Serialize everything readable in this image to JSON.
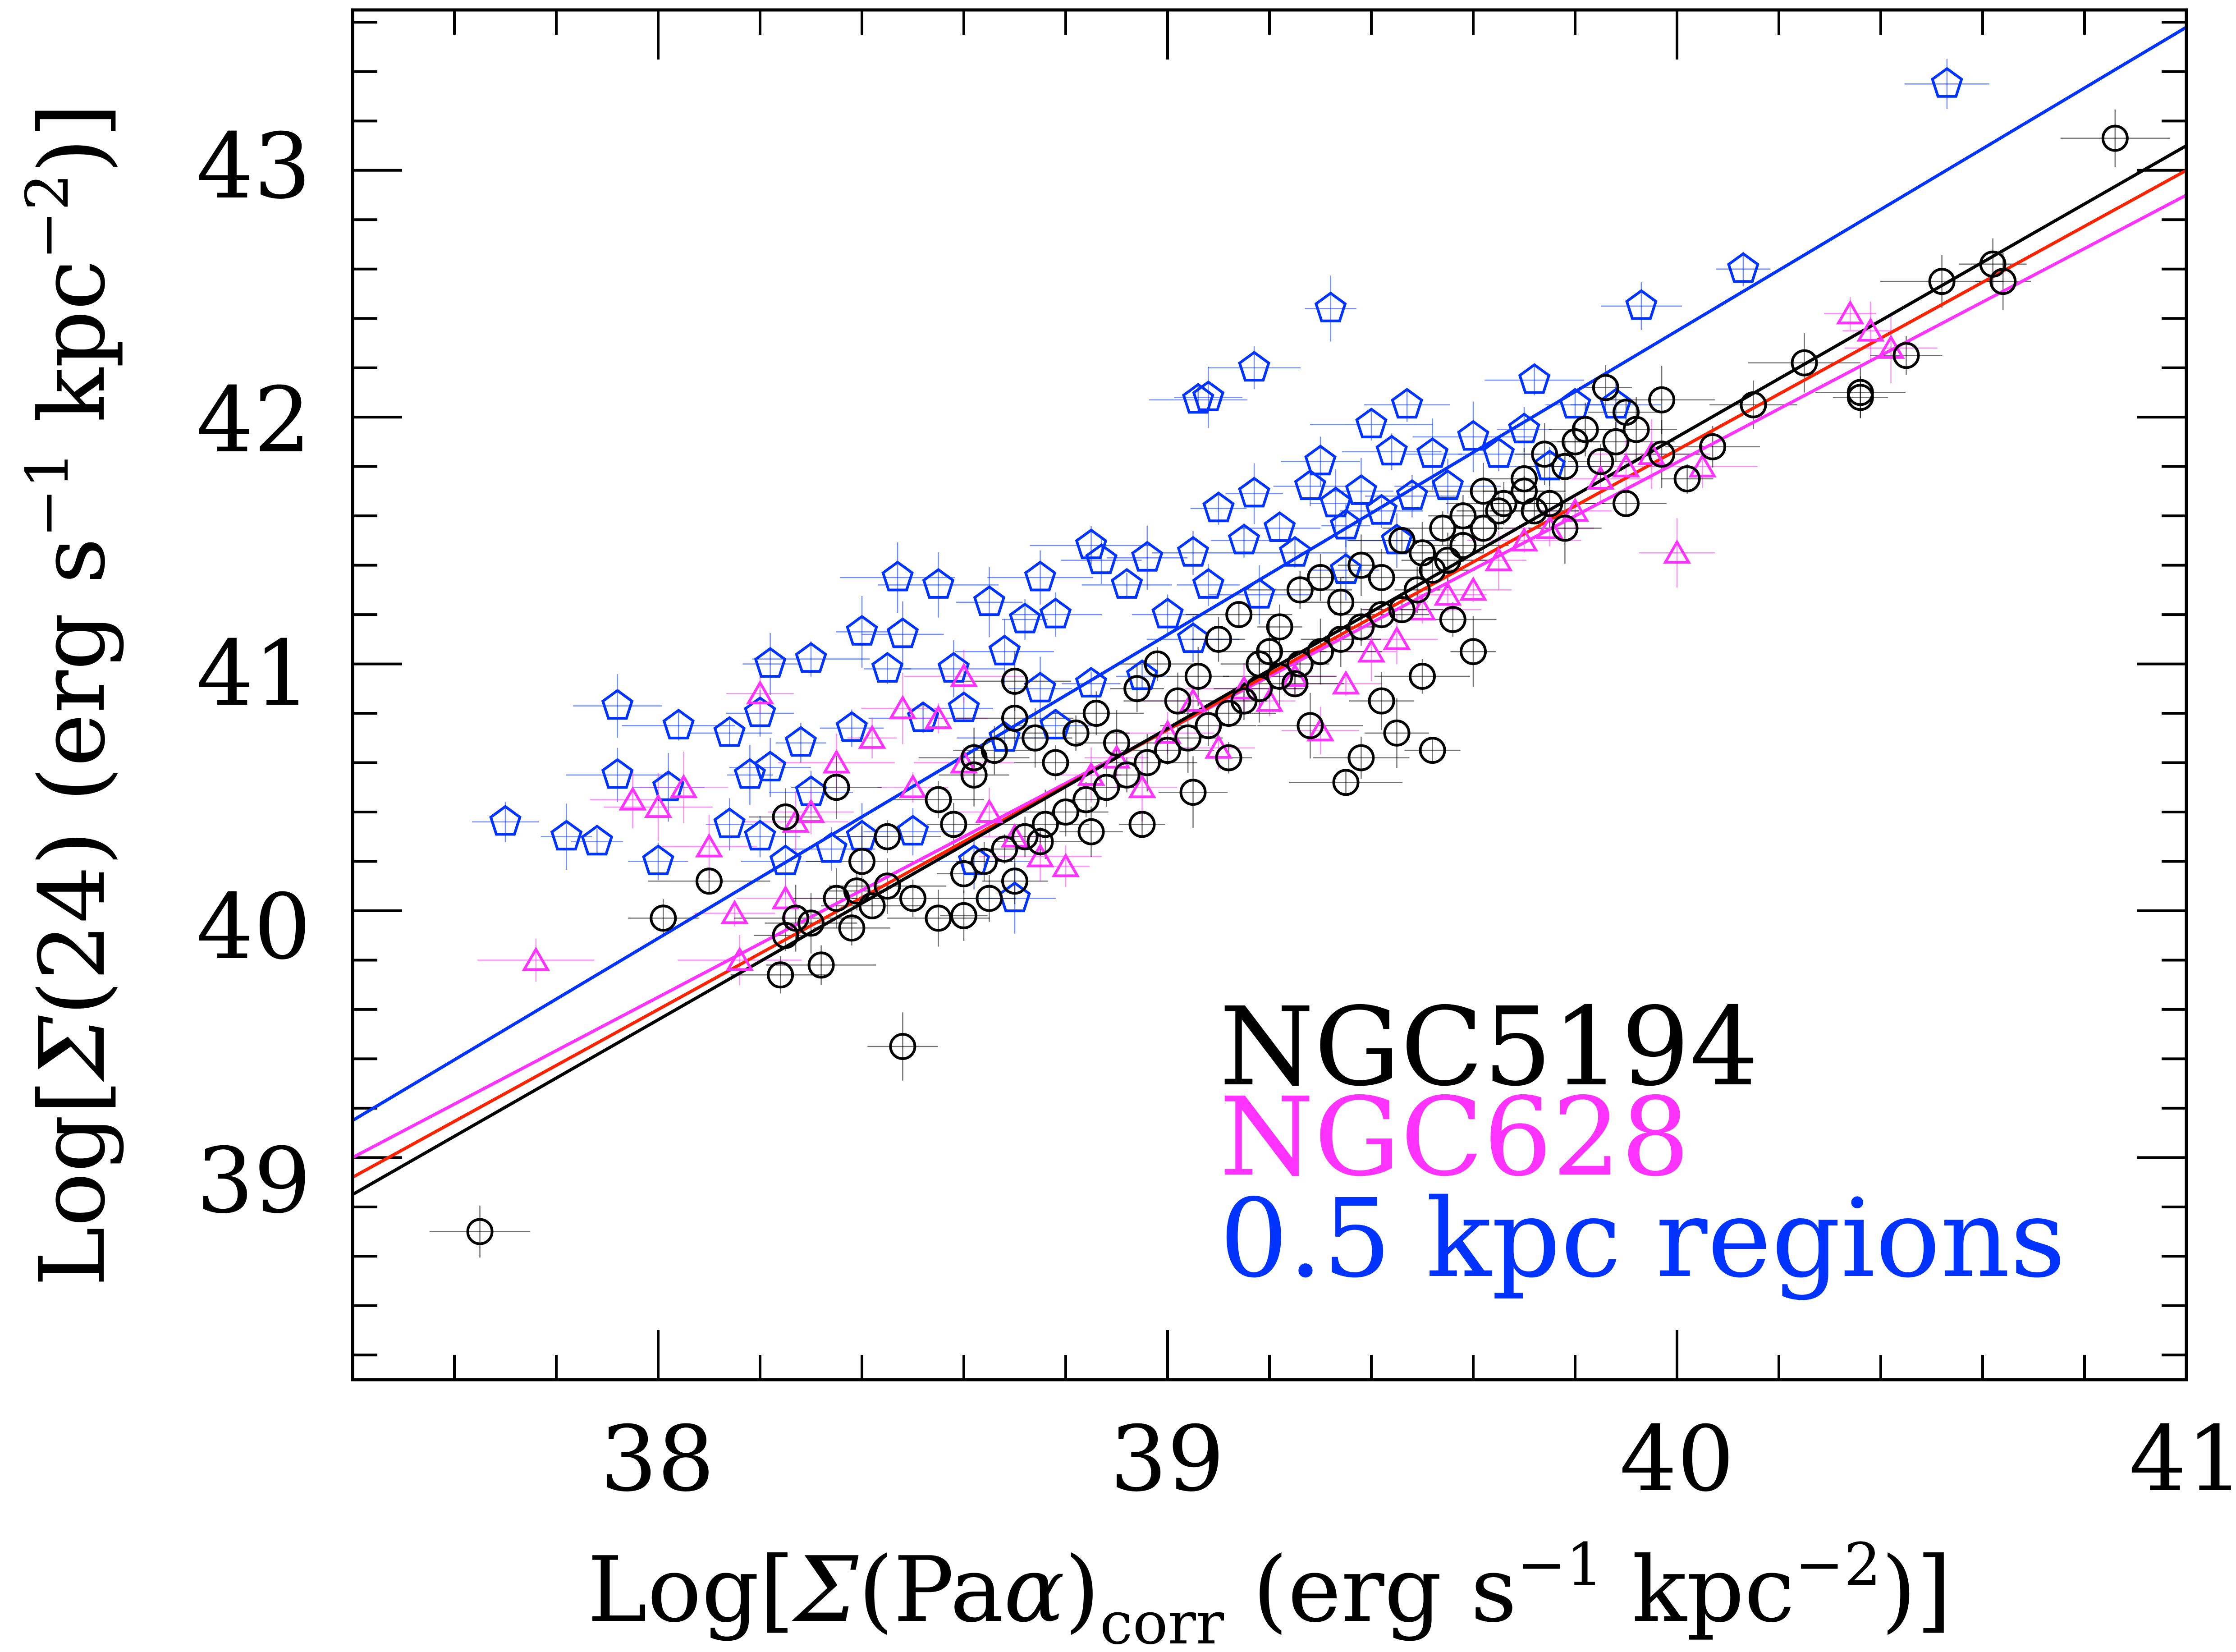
{
  "colors": {
    "ngc5194": "#000000",
    "ngc628": "#ff33ff",
    "regions": "#0033ff",
    "fit_red": "#ff2200"
  },
  "chart_data": {
    "type": "scatter",
    "xlim": [
      37.4,
      41.0
    ],
    "ylim": [
      38.1,
      43.65
    ],
    "x_ticks": [
      "38",
      "39",
      "40",
      "41"
    ],
    "y_ticks": [
      "39",
      "40",
      "41",
      "42",
      "43"
    ],
    "xlabel": {
      "pre": "Log[",
      "sigma": "Σ",
      "paren": "(Pa",
      "alpha": "α",
      "close": ")",
      "sub": "corr",
      "units": " (erg s",
      "exp1": "−1",
      "mid": " kpc",
      "exp2": "−2",
      "end": ")]"
    },
    "ylabel": {
      "pre": "Log[",
      "sigma": "Σ",
      "main": "(24) (erg s",
      "exp1": "−1",
      "mid": " kpc",
      "exp2": "−2",
      "end": ")]"
    },
    "grid": false,
    "legend_position": "bottom-right",
    "legend": [
      "NGC5194",
      "NGC628",
      "0.5 kpc regions"
    ],
    "fit_lines": [
      {
        "color": "blue",
        "x": [
          37.4,
          41.0
        ],
        "y": [
          39.15,
          43.58
        ]
      },
      {
        "color": "magenta",
        "x": [
          37.4,
          41.0
        ],
        "y": [
          39.0,
          42.9
        ]
      },
      {
        "color": "red",
        "x": [
          37.4,
          41.0
        ],
        "y": [
          38.92,
          43.0
        ]
      },
      {
        "color": "black",
        "x": [
          37.4,
          41.0
        ],
        "y": [
          38.85,
          43.1
        ]
      }
    ],
    "series": [
      {
        "name": "0.5 kpc regions",
        "marker": "pentagon",
        "points": [
          [
            40.53,
            43.35
          ],
          [
            40.13,
            42.6
          ],
          [
            39.93,
            42.45
          ],
          [
            39.32,
            42.44
          ],
          [
            39.17,
            42.2
          ],
          [
            39.08,
            42.08
          ],
          [
            39.06,
            42.07
          ],
          [
            39.47,
            42.05
          ],
          [
            39.72,
            42.15
          ],
          [
            39.88,
            42.05
          ],
          [
            39.8,
            42.05
          ],
          [
            39.6,
            41.92
          ],
          [
            39.7,
            41.95
          ],
          [
            39.4,
            41.97
          ],
          [
            39.3,
            41.82
          ],
          [
            39.44,
            41.86
          ],
          [
            39.52,
            41.85
          ],
          [
            39.65,
            41.85
          ],
          [
            39.75,
            41.8
          ],
          [
            39.17,
            41.69
          ],
          [
            39.28,
            41.72
          ],
          [
            39.33,
            41.65
          ],
          [
            39.38,
            41.7
          ],
          [
            39.42,
            41.62
          ],
          [
            39.48,
            41.68
          ],
          [
            39.55,
            41.72
          ],
          [
            39.1,
            41.63
          ],
          [
            39.22,
            41.55
          ],
          [
            39.35,
            41.56
          ],
          [
            39.45,
            41.5
          ],
          [
            38.85,
            41.48
          ],
          [
            38.87,
            41.42
          ],
          [
            38.96,
            41.43
          ],
          [
            39.05,
            41.45
          ],
          [
            39.15,
            41.5
          ],
          [
            39.25,
            41.45
          ],
          [
            39.35,
            41.38
          ],
          [
            38.47,
            41.35
          ],
          [
            38.55,
            41.32
          ],
          [
            38.75,
            41.35
          ],
          [
            38.92,
            41.32
          ],
          [
            39.0,
            41.2
          ],
          [
            39.08,
            41.32
          ],
          [
            39.18,
            41.28
          ],
          [
            38.65,
            41.25
          ],
          [
            38.72,
            41.18
          ],
          [
            38.78,
            41.2
          ],
          [
            38.4,
            41.13
          ],
          [
            38.48,
            41.12
          ],
          [
            39.05,
            41.1
          ],
          [
            38.22,
            41.0
          ],
          [
            38.3,
            41.02
          ],
          [
            38.45,
            40.98
          ],
          [
            38.58,
            40.98
          ],
          [
            38.68,
            41.05
          ],
          [
            38.75,
            40.9
          ],
          [
            38.85,
            40.92
          ],
          [
            38.95,
            40.95
          ],
          [
            37.92,
            40.83
          ],
          [
            38.04,
            40.75
          ],
          [
            38.14,
            40.72
          ],
          [
            38.2,
            40.8
          ],
          [
            38.28,
            40.68
          ],
          [
            38.38,
            40.74
          ],
          [
            38.52,
            40.78
          ],
          [
            38.6,
            40.82
          ],
          [
            38.68,
            40.7
          ],
          [
            38.78,
            40.75
          ],
          [
            38.3,
            40.48
          ],
          [
            38.18,
            40.55
          ],
          [
            38.22,
            40.58
          ],
          [
            38.02,
            40.5
          ],
          [
            37.92,
            40.55
          ],
          [
            37.7,
            40.36
          ],
          [
            37.82,
            40.3
          ],
          [
            37.88,
            40.28
          ],
          [
            38.0,
            40.2
          ],
          [
            38.14,
            40.35
          ],
          [
            38.2,
            40.3
          ],
          [
            38.25,
            40.2
          ],
          [
            38.34,
            40.25
          ],
          [
            38.4,
            40.3
          ],
          [
            38.5,
            40.32
          ],
          [
            38.62,
            40.2
          ],
          [
            38.7,
            40.05
          ]
        ]
      },
      {
        "name": "NGC628",
        "marker": "triangle",
        "points": [
          [
            37.76,
            39.8
          ],
          [
            37.95,
            40.45
          ],
          [
            38.0,
            40.42
          ],
          [
            38.05,
            40.5
          ],
          [
            38.1,
            40.26
          ],
          [
            38.15,
            39.99
          ],
          [
            38.16,
            39.8
          ],
          [
            38.25,
            40.05
          ],
          [
            38.27,
            40.36
          ],
          [
            38.3,
            40.4
          ],
          [
            38.35,
            40.6
          ],
          [
            38.42,
            40.7
          ],
          [
            38.48,
            40.82
          ],
          [
            38.55,
            40.78
          ],
          [
            38.6,
            40.6
          ],
          [
            38.65,
            40.4
          ],
          [
            38.7,
            40.3
          ],
          [
            38.75,
            40.22
          ],
          [
            38.8,
            40.18
          ],
          [
            38.85,
            40.55
          ],
          [
            38.9,
            40.62
          ],
          [
            38.95,
            40.5
          ],
          [
            39.0,
            40.72
          ],
          [
            39.05,
            40.85
          ],
          [
            39.1,
            40.66
          ],
          [
            39.15,
            40.9
          ],
          [
            39.2,
            40.85
          ],
          [
            39.25,
            40.95
          ],
          [
            39.3,
            40.73
          ],
          [
            39.35,
            40.92
          ],
          [
            39.4,
            41.05
          ],
          [
            39.45,
            41.1
          ],
          [
            39.5,
            41.22
          ],
          [
            39.55,
            41.28
          ],
          [
            39.6,
            41.3
          ],
          [
            39.65,
            41.42
          ],
          [
            39.7,
            41.5
          ],
          [
            39.75,
            41.55
          ],
          [
            39.8,
            41.62
          ],
          [
            39.85,
            41.75
          ],
          [
            39.9,
            41.8
          ],
          [
            39.95,
            41.85
          ],
          [
            40.0,
            41.45
          ],
          [
            40.05,
            41.8
          ],
          [
            40.34,
            42.42
          ],
          [
            40.38,
            42.35
          ],
          [
            40.42,
            42.28
          ],
          [
            38.2,
            40.88
          ],
          [
            38.5,
            40.5
          ],
          [
            38.6,
            40.95
          ]
        ]
      },
      {
        "name": "NGC5194",
        "marker": "circle",
        "points": [
          [
            40.86,
            43.13
          ],
          [
            40.62,
            42.62
          ],
          [
            40.64,
            42.55
          ],
          [
            40.52,
            42.55
          ],
          [
            40.45,
            42.25
          ],
          [
            40.36,
            42.1
          ],
          [
            40.36,
            42.08
          ],
          [
            40.25,
            42.22
          ],
          [
            40.15,
            42.05
          ],
          [
            40.07,
            41.88
          ],
          [
            40.02,
            41.75
          ],
          [
            39.97,
            41.85
          ],
          [
            39.97,
            42.07
          ],
          [
            39.92,
            41.95
          ],
          [
            39.9,
            41.65
          ],
          [
            39.88,
            41.9
          ],
          [
            39.85,
            41.82
          ],
          [
            39.8,
            41.9
          ],
          [
            39.78,
            41.55
          ],
          [
            39.75,
            41.65
          ],
          [
            39.72,
            41.62
          ],
          [
            39.7,
            41.7
          ],
          [
            39.65,
            41.62
          ],
          [
            39.62,
            41.55
          ],
          [
            39.58,
            41.48
          ],
          [
            39.55,
            41.42
          ],
          [
            39.52,
            41.38
          ],
          [
            39.49,
            41.3
          ],
          [
            39.46,
            41.22
          ],
          [
            39.42,
            41.2
          ],
          [
            39.38,
            41.15
          ],
          [
            39.34,
            41.1
          ],
          [
            39.3,
            41.05
          ],
          [
            39.26,
            41.0
          ],
          [
            39.22,
            40.95
          ],
          [
            39.2,
            41.05
          ],
          [
            39.18,
            40.9
          ],
          [
            39.15,
            40.85
          ],
          [
            39.12,
            40.8
          ],
          [
            39.08,
            40.75
          ],
          [
            39.04,
            40.7
          ],
          [
            39.0,
            40.65
          ],
          [
            38.96,
            40.6
          ],
          [
            38.92,
            40.55
          ],
          [
            38.88,
            40.5
          ],
          [
            38.84,
            40.45
          ],
          [
            38.8,
            40.4
          ],
          [
            38.76,
            40.35
          ],
          [
            38.72,
            40.3
          ],
          [
            38.68,
            40.25
          ],
          [
            38.64,
            40.2
          ],
          [
            38.6,
            40.15
          ],
          [
            38.58,
            40.35
          ],
          [
            38.62,
            40.55
          ],
          [
            38.66,
            40.65
          ],
          [
            38.7,
            40.78
          ],
          [
            38.74,
            40.7
          ],
          [
            38.78,
            40.6
          ],
          [
            38.82,
            40.72
          ],
          [
            38.86,
            40.8
          ],
          [
            38.9,
            40.68
          ],
          [
            38.94,
            40.9
          ],
          [
            38.98,
            41.0
          ],
          [
            39.02,
            40.85
          ],
          [
            39.06,
            40.95
          ],
          [
            39.1,
            41.1
          ],
          [
            39.14,
            41.2
          ],
          [
            39.18,
            41.0
          ],
          [
            39.22,
            41.15
          ],
          [
            39.26,
            41.3
          ],
          [
            39.3,
            41.35
          ],
          [
            39.34,
            41.25
          ],
          [
            39.38,
            41.4
          ],
          [
            39.42,
            41.35
          ],
          [
            39.46,
            41.5
          ],
          [
            39.5,
            41.45
          ],
          [
            39.54,
            41.55
          ],
          [
            39.58,
            41.6
          ],
          [
            39.62,
            41.7
          ],
          [
            39.66,
            41.65
          ],
          [
            39.7,
            41.75
          ],
          [
            39.74,
            41.85
          ],
          [
            39.78,
            41.8
          ],
          [
            39.82,
            41.95
          ],
          [
            39.86,
            42.12
          ],
          [
            39.9,
            42.02
          ],
          [
            39.56,
            41.18
          ],
          [
            39.6,
            41.05
          ],
          [
            39.5,
            40.95
          ],
          [
            39.45,
            40.72
          ],
          [
            39.42,
            40.85
          ],
          [
            39.38,
            40.62
          ],
          [
            39.35,
            40.52
          ],
          [
            39.52,
            40.65
          ],
          [
            39.28,
            40.75
          ],
          [
            39.25,
            40.92
          ],
          [
            39.12,
            40.62
          ],
          [
            39.05,
            40.48
          ],
          [
            38.95,
            40.35
          ],
          [
            38.85,
            40.32
          ],
          [
            38.75,
            40.28
          ],
          [
            38.7,
            40.12
          ],
          [
            38.65,
            40.05
          ],
          [
            38.6,
            39.98
          ],
          [
            38.55,
            39.97
          ],
          [
            38.5,
            40.05
          ],
          [
            38.45,
            40.1
          ],
          [
            38.42,
            40.02
          ],
          [
            38.39,
            40.08
          ],
          [
            38.35,
            40.05
          ],
          [
            38.3,
            39.95
          ],
          [
            38.27,
            39.97
          ],
          [
            38.25,
            39.9
          ],
          [
            38.24,
            39.74
          ],
          [
            38.32,
            39.78
          ],
          [
            38.38,
            39.93
          ],
          [
            38.48,
            39.45
          ],
          [
            38.1,
            40.12
          ],
          [
            38.01,
            39.97
          ],
          [
            38.4,
            40.2
          ],
          [
            38.45,
            40.3
          ],
          [
            38.25,
            40.38
          ],
          [
            38.35,
            40.5
          ],
          [
            38.55,
            40.45
          ],
          [
            38.62,
            40.62
          ],
          [
            38.7,
            40.93
          ],
          [
            37.65,
            38.7
          ]
        ]
      }
    ]
  }
}
